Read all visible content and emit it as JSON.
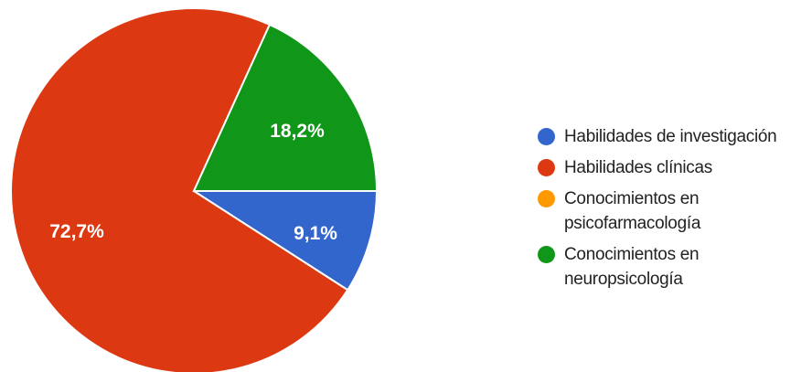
{
  "chart_data": {
    "type": "pie",
    "title": "",
    "slices": [
      {
        "label": "Habilidades de investigación",
        "value": 9.1,
        "display": "9,1%",
        "color": "#3366cc"
      },
      {
        "label": "Habilidades clínicas",
        "value": 72.7,
        "display": "72,7%",
        "color": "#dc3912"
      },
      {
        "label": "Conocimientos en psicofarmacología",
        "value": 0,
        "display": "",
        "color": "#ff9900"
      },
      {
        "label": "Conocimientos en neuropsicología",
        "value": 18.2,
        "display": "18,2%",
        "color": "#109618"
      }
    ],
    "legend": {
      "position": "right",
      "items": [
        "Habilidades de investigación",
        "Habilidades clínicas",
        "Conocimientos en psicofarmacología",
        "Conocimientos en neuropsicología"
      ]
    }
  }
}
